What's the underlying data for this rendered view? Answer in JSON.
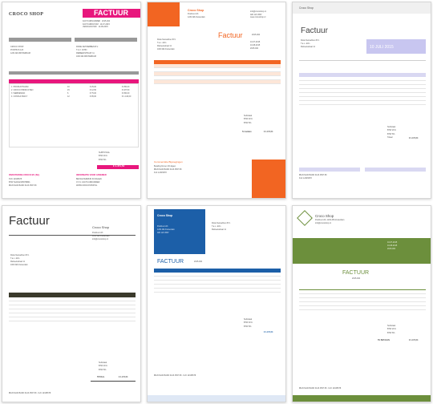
{
  "colors": {
    "pink": "#e8177d",
    "orange": "#f26522",
    "lavender": "#c8c6f0",
    "dark_olive": "#3b3a2c",
    "blue": "#1c5fa8",
    "green": "#6c8f3c"
  },
  "invoice1": {
    "brand": "CROCO SHOP",
    "title": "FACTUUR",
    "footer_left": "INVESTERING CROCO BV (NL)",
    "footer_right": "INFORMATIE VOOR AFNEMER",
    "total": "€ 1.471,54"
  },
  "invoice2": {
    "brand": "Croco Shop",
    "title": "Factuur",
    "number": "2015-004",
    "client": "Rode Netwebben B.V.",
    "footer": "Commerciële Bijvoegingen",
    "total": "€ 1.471,54"
  },
  "invoice3": {
    "brand": "Croco Shop",
    "title": "Factuur",
    "date": "10 JULI 2015",
    "client": "Rode Netwebben B.V.",
    "total": "€ 1.471,54"
  },
  "invoice4": {
    "title": "Factuur",
    "brand": "Croco Shop",
    "client": "Rode Netwebben B.V.",
    "total_label": "TOTAAL",
    "total": "€ 1.471,54"
  },
  "invoice5": {
    "brand": "Croco Shop",
    "title": "FACTUUR",
    "number": "2015-004",
    "client": "Rode Netwebben B.V.",
    "total": "€ 1.471,54"
  },
  "invoice6": {
    "brand": "Croco Shop",
    "title": "FACTUUR",
    "subtitle": "2015-004",
    "total_label": "TE BETALEN",
    "total": "€ 1.471,54"
  },
  "items": [
    "Productnaam",
    "Croco producten",
    "Webdesign",
    "Uren",
    "Consultancy"
  ]
}
